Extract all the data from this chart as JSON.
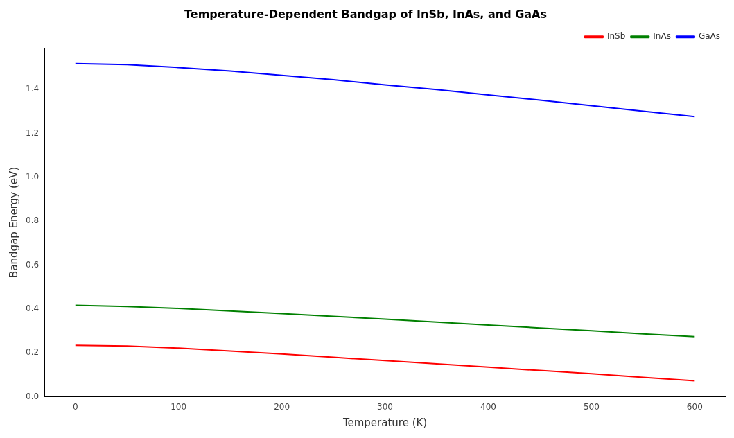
{
  "chart_data": {
    "type": "line",
    "title": "Temperature-Dependent Bandgap of InSb, InAs, and GaAs",
    "xlabel": "Temperature (K)",
    "ylabel": "Bandgap Energy (eV)",
    "x": [
      0,
      50,
      100,
      150,
      200,
      250,
      300,
      350,
      400,
      450,
      500,
      550,
      600
    ],
    "series": [
      {
        "name": "InSb",
        "color": "#ff0000",
        "values": [
          0.235,
          0.232,
          0.222,
          0.209,
          0.195,
          0.18,
          0.165,
          0.15,
          0.135,
          0.12,
          0.105,
          0.089,
          0.073
        ]
      },
      {
        "name": "InAs",
        "color": "#008000",
        "values": [
          0.417,
          0.412,
          0.403,
          0.391,
          0.379,
          0.367,
          0.354,
          0.341,
          0.327,
          0.314,
          0.301,
          0.287,
          0.274
        ]
      },
      {
        "name": "GaAs",
        "color": "#0000ff",
        "values": [
          1.519,
          1.514,
          1.501,
          1.485,
          1.465,
          1.445,
          1.422,
          1.4,
          1.376,
          1.352,
          1.327,
          1.302,
          1.277
        ]
      }
    ],
    "xlim": [
      -30,
      630
    ],
    "xticks": [
      0,
      100,
      200,
      300,
      400,
      500,
      600
    ],
    "ylim": [
      0,
      1.59
    ],
    "yticks": [
      {
        "value": 0,
        "label": "0.0"
      },
      {
        "value": 0.2,
        "label": "0.2"
      },
      {
        "value": 0.4,
        "label": "0.4"
      },
      {
        "value": 0.6,
        "label": "0.6"
      },
      {
        "value": 0.8,
        "label": "0.8"
      },
      {
        "value": 1.0,
        "label": "1.0"
      },
      {
        "value": 1.2,
        "label": "1.2"
      },
      {
        "value": 1.4,
        "label": "1.4"
      }
    ],
    "grid": false,
    "legend": "top right",
    "marker": "none",
    "line_style": "solid"
  }
}
